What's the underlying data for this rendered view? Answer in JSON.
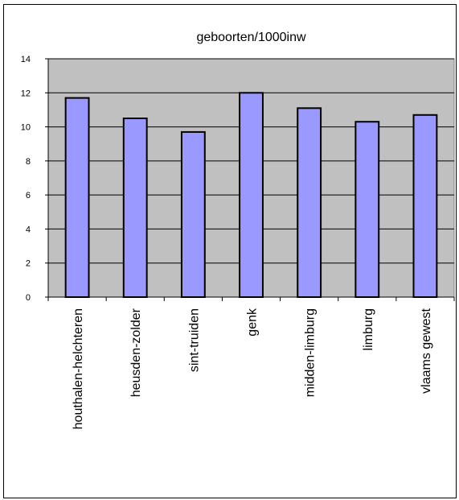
{
  "chart_data": {
    "type": "bar",
    "title": "geboorten/1000inw",
    "categories": [
      "houthalen-helchteren",
      "heusden-zolder",
      "sint-truiden",
      "genk",
      "midden-limburg",
      "limburg",
      "vlaams gewest"
    ],
    "values": [
      11.7,
      10.5,
      9.7,
      12.0,
      11.1,
      10.3,
      10.7
    ],
    "ylim": [
      0,
      14
    ],
    "yticks": [
      "0",
      "2",
      "4",
      "6",
      "8",
      "10",
      "12",
      "14"
    ],
    "grid": true,
    "legend": "none",
    "colors": {
      "bar": "#9999ff",
      "plot_area": "#c0c0c0",
      "bar_stroke": "#000000"
    }
  }
}
